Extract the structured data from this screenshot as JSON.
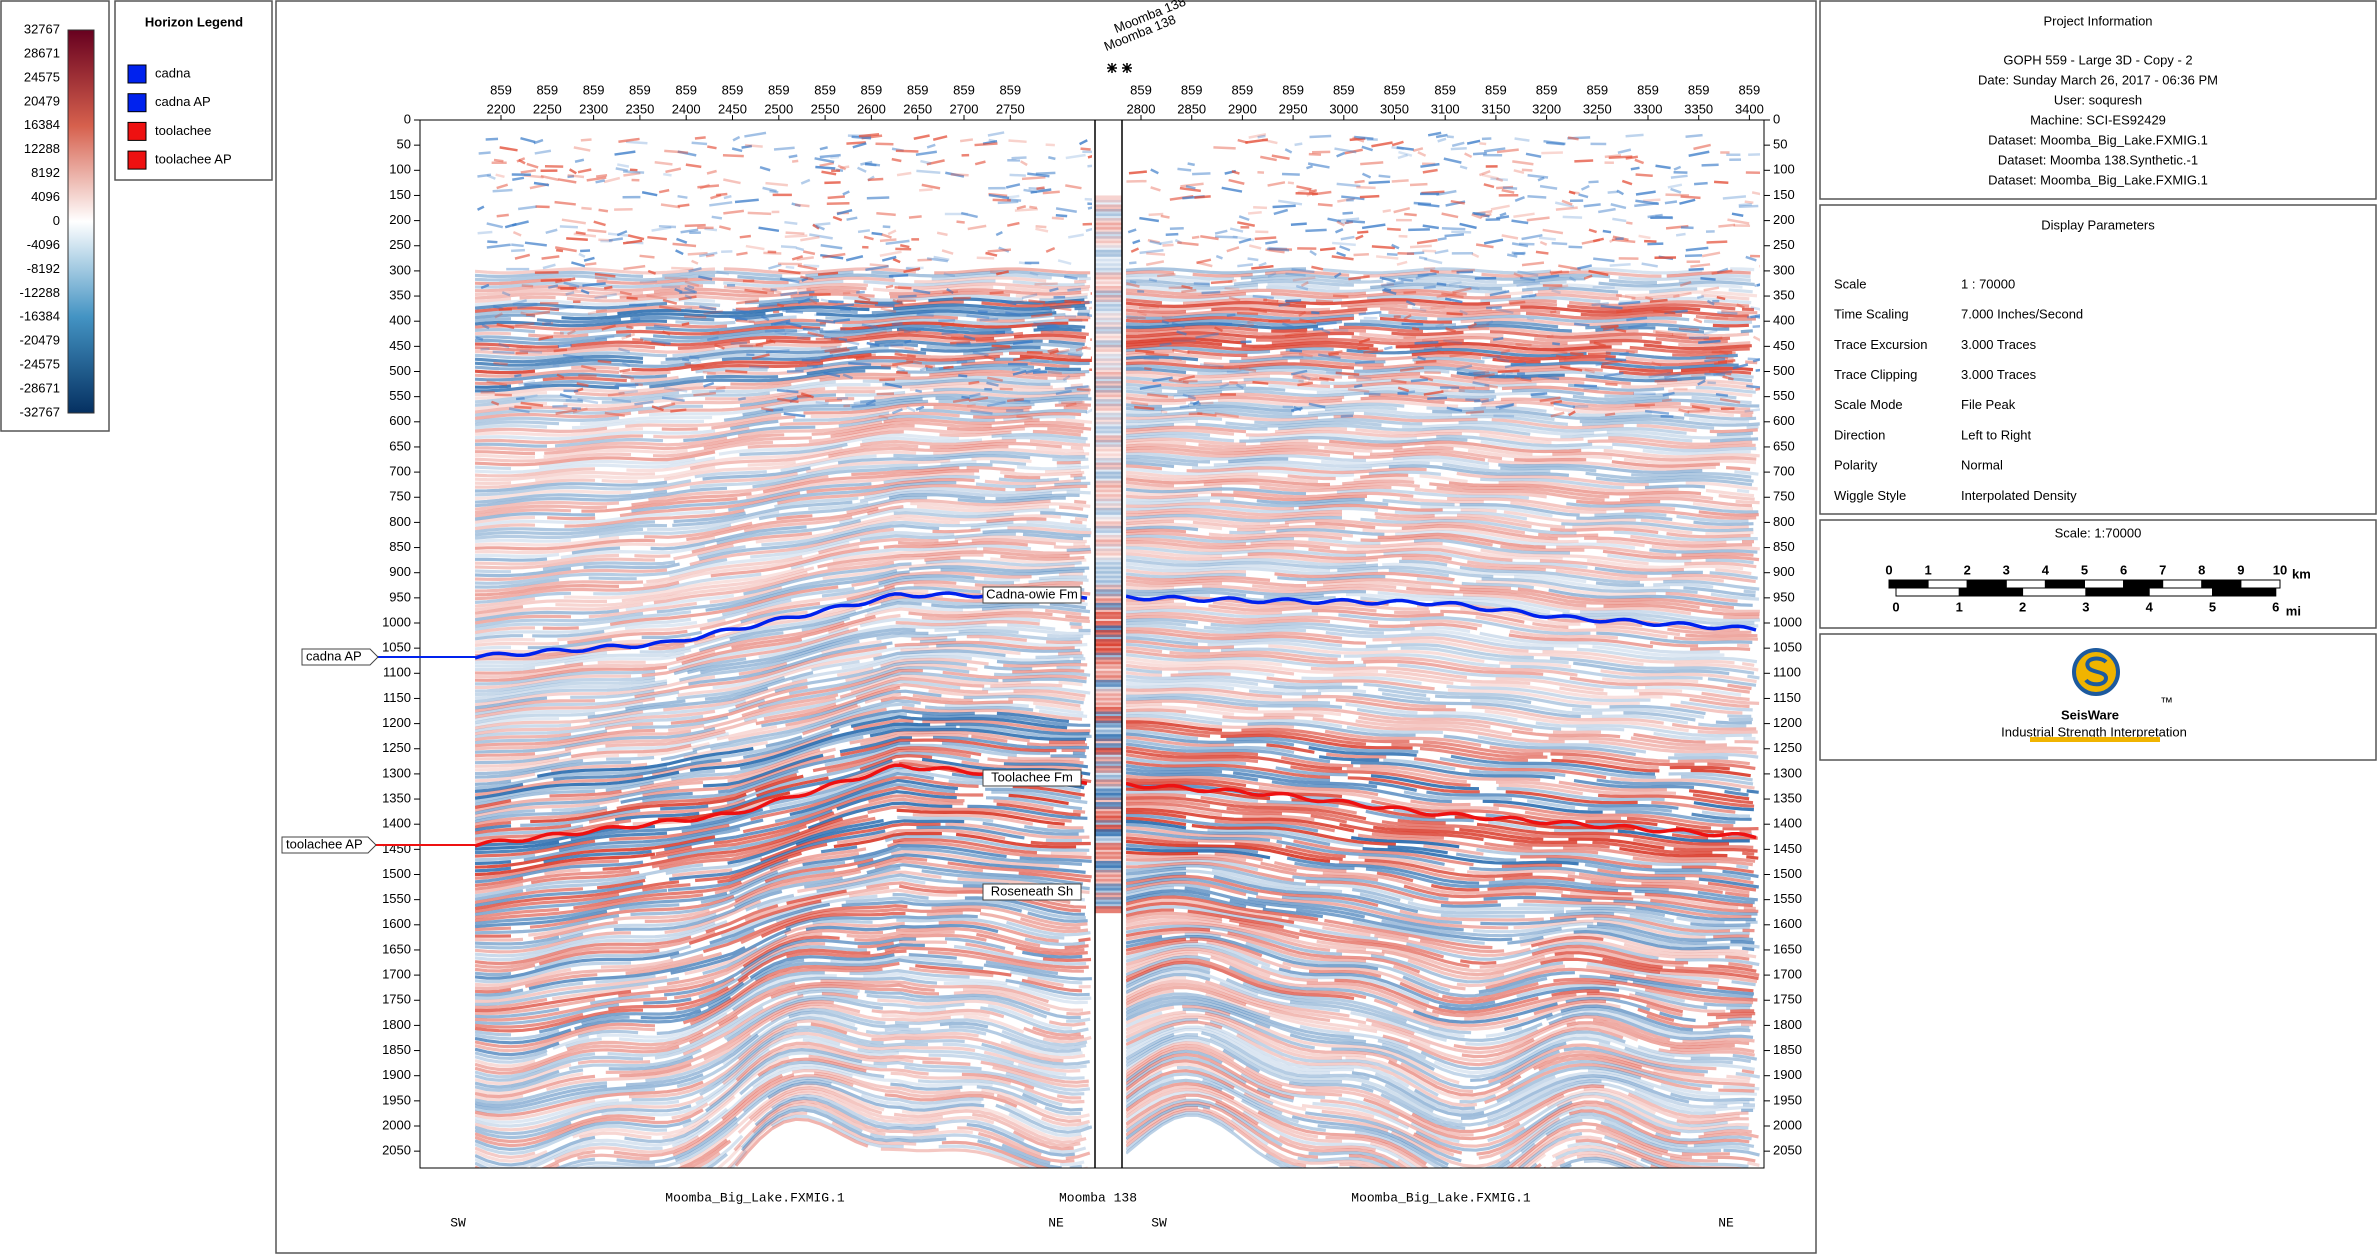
{
  "colorbar": {
    "labels": [
      32767,
      28671,
      24575,
      20479,
      16384,
      12288,
      8192,
      4096,
      0,
      -4096,
      -8192,
      -12288,
      -16384,
      -20479,
      -24575,
      -28671,
      -32767
    ]
  },
  "horizon_legend": {
    "title": "Horizon Legend",
    "items": [
      {
        "label": "cadna",
        "color": "#0022ee"
      },
      {
        "label": "cadna AP",
        "color": "#0022ee"
      },
      {
        "label": "toolachee",
        "color": "#ee1111"
      },
      {
        "label": "toolachee AP",
        "color": "#ee1111"
      }
    ]
  },
  "section": {
    "inline": "859",
    "traces_left": [
      2200,
      2250,
      2300,
      2350,
      2400,
      2450,
      2500,
      2550,
      2600,
      2650,
      2700,
      2750
    ],
    "traces_right": [
      2800,
      2850,
      2900,
      2950,
      3000,
      3050,
      3100,
      3150,
      3200,
      3250,
      3300,
      3350,
      3400
    ],
    "time_ticks": [
      0,
      50,
      100,
      150,
      200,
      250,
      300,
      350,
      400,
      450,
      500,
      550,
      600,
      650,
      700,
      750,
      800,
      850,
      900,
      950,
      1000,
      1050,
      1100,
      1150,
      1200,
      1250,
      1300,
      1350,
      1400,
      1450,
      1500,
      1550,
      1600,
      1650,
      1700,
      1750,
      1800,
      1850,
      1900,
      1950,
      2000,
      2050
    ],
    "well": "Moomba 138",
    "well_tops": [
      "Cadna-owie Fm",
      "Toolachee Fm",
      "Roseneath Sh"
    ],
    "horizon_picks": [
      "cadna AP",
      "toolachee AP"
    ],
    "footer": {
      "left_dataset": "Moomba_Big_Lake.FXMIG.1",
      "well": "Moomba 138",
      "right_dataset": "Moomba_Big_Lake.FXMIG.1",
      "left_start": "SW",
      "left_end": "NE",
      "right_start": "SW",
      "right_end": "NE"
    }
  },
  "project_information": {
    "title": "Project Information",
    "lines": [
      "GOPH 559 - Large 3D - Copy - 2",
      "Date: Sunday March 26, 2017 - 06:36 PM",
      "User: soquresh",
      "Machine: SCI-ES92429",
      "Dataset: Moomba_Big_Lake.FXMIG.1",
      "Dataset: Moomba 138.Synthetic.-1",
      "Dataset: Moomba_Big_Lake.FXMIG.1"
    ]
  },
  "display_parameters": {
    "title": "Display Parameters",
    "rows": [
      [
        "Scale",
        "1 : 70000"
      ],
      [
        "Time Scaling",
        "7.000 Inches/Second"
      ],
      [
        "Trace Excursion",
        "3.000 Traces"
      ],
      [
        "Trace Clipping",
        "3.000 Traces"
      ],
      [
        "Scale Mode",
        "File Peak"
      ],
      [
        "Direction",
        "Left to Right"
      ],
      [
        "Polarity",
        "Normal"
      ],
      [
        "Wiggle Style",
        "Interpolated Density"
      ]
    ]
  },
  "scale": {
    "title": "Scale: 1:70000",
    "km_ticks": [
      0,
      1,
      2,
      3,
      4,
      5,
      6,
      7,
      8,
      9,
      10
    ],
    "km_unit": "km",
    "mi_ticks": [
      0,
      1,
      2,
      3,
      4,
      5,
      6
    ],
    "mi_unit": "mi"
  },
  "logo": {
    "name": "SeisWare",
    "tm": "™",
    "tagline": "Industrial Strength Interpretation"
  }
}
